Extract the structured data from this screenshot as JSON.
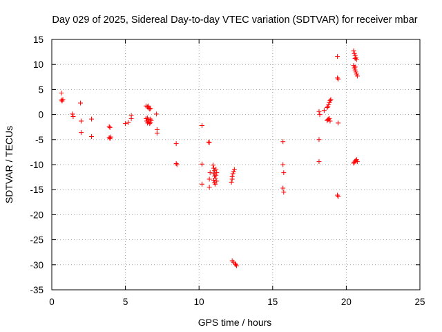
{
  "chart_data": {
    "type": "scatter",
    "title": "Day 029 of 2025, Sidereal Day-to-day VTEC variation (SDTVAR) for receiver mbar",
    "xlabel": "GPS time / hours",
    "ylabel": "SDTVAR / TECUs",
    "xlim": [
      0,
      25
    ],
    "ylim": [
      -35,
      15
    ],
    "xticks": [
      0,
      5,
      10,
      15,
      20,
      25
    ],
    "yticks": [
      15,
      10,
      5,
      0,
      -5,
      -10,
      -15,
      -20,
      -25,
      -30,
      -35
    ],
    "grid": true,
    "marker": "+",
    "color": "#ff0000",
    "series": [
      {
        "name": "SDTVAR",
        "points": [
          [
            0.65,
            4.3
          ],
          [
            0.65,
            2.9
          ],
          [
            0.7,
            2.7
          ],
          [
            0.75,
            3.0
          ],
          [
            1.4,
            0.1
          ],
          [
            1.45,
            -0.4
          ],
          [
            1.95,
            2.3
          ],
          [
            2.0,
            -1.3
          ],
          [
            2.0,
            -3.6
          ],
          [
            2.7,
            -0.9
          ],
          [
            2.7,
            -4.4
          ],
          [
            3.9,
            -2.4
          ],
          [
            3.95,
            -2.6
          ],
          [
            3.9,
            -4.6
          ],
          [
            4.0,
            -4.5
          ],
          [
            3.95,
            -4.8
          ],
          [
            5.0,
            -1.8
          ],
          [
            5.2,
            -1.6
          ],
          [
            5.4,
            -0.2
          ],
          [
            5.4,
            -0.8
          ],
          [
            6.4,
            1.7
          ],
          [
            6.5,
            1.5
          ],
          [
            6.55,
            1.7
          ],
          [
            6.6,
            1.3
          ],
          [
            6.65,
            1.1
          ],
          [
            6.7,
            1.2
          ],
          [
            6.4,
            -0.8
          ],
          [
            6.45,
            -1.3
          ],
          [
            6.5,
            -0.7
          ],
          [
            6.5,
            -1.7
          ],
          [
            6.55,
            -1.0
          ],
          [
            6.6,
            -1.5
          ],
          [
            6.65,
            -1.8
          ],
          [
            6.7,
            -0.9
          ],
          [
            6.75,
            -1.2
          ],
          [
            6.7,
            -1.6
          ],
          [
            7.1,
            0.1
          ],
          [
            7.15,
            -3.0
          ],
          [
            7.15,
            -3.7
          ],
          [
            8.45,
            -5.8
          ],
          [
            8.45,
            -9.8
          ],
          [
            8.5,
            -10.0
          ],
          [
            10.2,
            -2.2
          ],
          [
            10.2,
            -9.9
          ],
          [
            10.2,
            -13.9
          ],
          [
            10.65,
            -5.5
          ],
          [
            10.7,
            -5.6
          ],
          [
            10.75,
            -11.6
          ],
          [
            10.7,
            -12.9
          ],
          [
            10.7,
            -14.5
          ],
          [
            10.95,
            -10.1
          ],
          [
            11.0,
            -10.7
          ],
          [
            11.05,
            -11.2
          ],
          [
            11.0,
            -11.8
          ],
          [
            11.05,
            -12.3
          ],
          [
            11.1,
            -12.7
          ],
          [
            11.0,
            -13.1
          ],
          [
            11.05,
            -13.6
          ],
          [
            11.15,
            -12.1
          ],
          [
            11.2,
            -11.6
          ],
          [
            11.15,
            -10.9
          ],
          [
            11.2,
            -13.3
          ],
          [
            11.1,
            -13.9
          ],
          [
            12.2,
            -13.5
          ],
          [
            12.25,
            -12.9
          ],
          [
            12.25,
            -12.4
          ],
          [
            12.3,
            -11.8
          ],
          [
            12.35,
            -11.4
          ],
          [
            12.4,
            -11.0
          ],
          [
            12.25,
            -29.2
          ],
          [
            12.35,
            -29.5
          ],
          [
            12.45,
            -29.8
          ],
          [
            12.5,
            -30.0
          ],
          [
            12.55,
            -30.2
          ],
          [
            15.7,
            -5.4
          ],
          [
            15.7,
            -10.0
          ],
          [
            15.75,
            -11.6
          ],
          [
            15.7,
            -14.7
          ],
          [
            15.75,
            -15.5
          ],
          [
            18.15,
            0.6
          ],
          [
            18.2,
            0.0
          ],
          [
            18.15,
            -5.0
          ],
          [
            18.15,
            -9.4
          ],
          [
            18.5,
            0.8
          ],
          [
            18.7,
            -1.2
          ],
          [
            18.75,
            -1.0
          ],
          [
            18.8,
            -0.9
          ],
          [
            18.85,
            -0.8
          ],
          [
            18.9,
            -1.3
          ],
          [
            18.7,
            1.4
          ],
          [
            18.75,
            1.6
          ],
          [
            18.8,
            2.0
          ],
          [
            18.85,
            2.4
          ],
          [
            18.9,
            2.8
          ],
          [
            18.95,
            3.0
          ],
          [
            19.4,
            11.6
          ],
          [
            19.4,
            7.3
          ],
          [
            19.45,
            7.1
          ],
          [
            19.45,
            -1.7
          ],
          [
            19.4,
            -16.1
          ],
          [
            19.45,
            -16.4
          ],
          [
            20.5,
            12.7
          ],
          [
            20.55,
            12.2
          ],
          [
            20.6,
            11.8
          ],
          [
            20.65,
            11.4
          ],
          [
            20.7,
            11.0
          ],
          [
            20.6,
            11.2
          ],
          [
            20.5,
            9.8
          ],
          [
            20.55,
            9.3
          ],
          [
            20.6,
            8.9
          ],
          [
            20.65,
            8.5
          ],
          [
            20.7,
            8.1
          ],
          [
            20.75,
            7.7
          ],
          [
            20.6,
            9.5
          ],
          [
            20.5,
            -9.7
          ],
          [
            20.55,
            -9.5
          ],
          [
            20.6,
            -9.3
          ],
          [
            20.65,
            -9.2
          ],
          [
            20.7,
            -9.0
          ],
          [
            20.75,
            -9.4
          ]
        ]
      }
    ]
  }
}
